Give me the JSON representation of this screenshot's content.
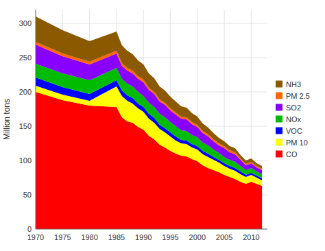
{
  "chart_data": {
    "type": "area",
    "stacked": true,
    "x": [
      1970,
      1975,
      1980,
      1985,
      1986,
      1987,
      1988,
      1989,
      1990,
      1991,
      1992,
      1993,
      1994,
      1995,
      1996,
      1997,
      1998,
      1999,
      2000,
      2001,
      2002,
      2003,
      2004,
      2005,
      2006,
      2007,
      2008,
      2009,
      2010,
      2011,
      2012
    ],
    "series": [
      {
        "name": "CO",
        "color": "#ff0000",
        "values": [
          200,
          188,
          180,
          178,
          163,
          157,
          155,
          149,
          145,
          136,
          131,
          123,
          119,
          114,
          110,
          107,
          106,
          102,
          99,
          93,
          89,
          86,
          83,
          79,
          76,
          73,
          69,
          66,
          69,
          66,
          63
        ]
      },
      {
        "name": "PM 10",
        "color": "#ffff00",
        "values": [
          9,
          8,
          7,
          30,
          31,
          30,
          28,
          27,
          26,
          25,
          24,
          23,
          22,
          21,
          19,
          18,
          18,
          17,
          17,
          16,
          16,
          15,
          14,
          13,
          12,
          12,
          11,
          10,
          10,
          9,
          8
        ]
      },
      {
        "name": "VOC",
        "color": "#0000ff",
        "values": [
          12,
          11,
          10,
          9,
          8,
          8,
          8,
          7,
          7,
          7,
          7,
          6,
          6,
          6,
          6,
          5,
          5,
          5,
          5,
          5,
          5,
          4,
          4,
          4,
          4,
          4,
          4,
          3,
          3,
          3,
          3
        ]
      },
      {
        "name": "NOx",
        "color": "#00bb00",
        "values": [
          20,
          20,
          20,
          18,
          17,
          17,
          17,
          17,
          16,
          16,
          16,
          16,
          16,
          15,
          15,
          14,
          14,
          13,
          13,
          12,
          12,
          11,
          10,
          9,
          9,
          9,
          8,
          7,
          7,
          6,
          6
        ]
      },
      {
        "name": "SO2",
        "color": "#8800ff",
        "values": [
          28,
          25,
          23,
          21,
          19,
          19,
          19,
          19,
          20,
          19,
          19,
          18,
          18,
          17,
          17,
          17,
          17,
          16,
          15,
          14,
          13,
          12,
          11,
          13,
          11,
          11,
          9,
          7,
          7,
          6,
          6
        ]
      },
      {
        "name": "PM 2.5",
        "color": "#ff6600",
        "values": [
          4,
          4,
          4,
          4,
          4,
          4,
          4,
          4,
          4,
          3,
          3,
          3,
          3,
          3,
          3,
          3,
          3,
          3,
          3,
          3,
          3,
          3,
          3,
          3,
          3,
          3,
          2,
          2,
          2,
          2,
          2
        ]
      },
      {
        "name": "NH3",
        "color": "#8B5A00",
        "values": [
          37,
          34,
          30,
          28,
          26,
          25,
          24,
          23,
          22,
          21,
          20,
          19,
          18,
          17,
          16,
          15,
          14,
          13,
          12,
          11,
          10,
          9,
          8,
          7,
          6,
          6,
          5,
          5,
          5,
          4,
          4
        ]
      }
    ],
    "ylabel": "Million tons",
    "xlim": [
      1970,
      2013
    ],
    "ylim": [
      0,
      320
    ],
    "xticks": [
      1970,
      1975,
      1980,
      1985,
      1990,
      1995,
      2000,
      2005,
      2010
    ],
    "yticks": [
      0,
      50,
      100,
      150,
      200,
      250,
      300
    ],
    "grid": true,
    "legend": "right"
  }
}
